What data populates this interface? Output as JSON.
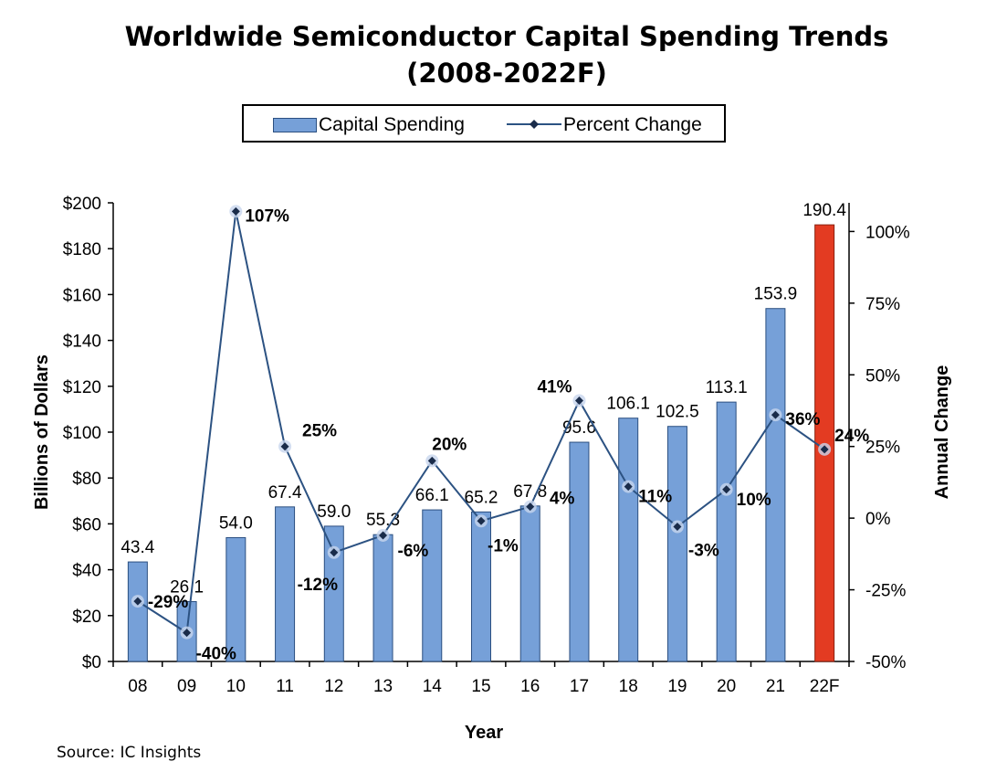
{
  "chart_data": {
    "type": "bar",
    "title": "Worldwide Semiconductor Capital Spending Trends",
    "subtitle": "(2008-2022F)",
    "categories": [
      "08",
      "09",
      "10",
      "11",
      "12",
      "13",
      "14",
      "15",
      "16",
      "17",
      "18",
      "19",
      "20",
      "21",
      "22F"
    ],
    "series": [
      {
        "name": "Capital Spending",
        "type": "bar",
        "axis": "left",
        "values": [
          43.4,
          26.1,
          54.0,
          67.4,
          59.0,
          55.3,
          66.1,
          65.2,
          67.8,
          95.6,
          106.1,
          102.5,
          113.1,
          153.9,
          190.4
        ],
        "labels": [
          "43.4",
          "26.1",
          "54.0",
          "67.4",
          "59.0",
          "55.3",
          "66.1",
          "65.2",
          "67.8",
          "95.6",
          "106.1",
          "102.5",
          "113.1",
          "153.9",
          "190.4"
        ],
        "color": "#76a0d8",
        "highlight_index": 14,
        "highlight_color": "#e33b22"
      },
      {
        "name": "Percent Change",
        "type": "line",
        "axis": "right",
        "values": [
          -29,
          -40,
          107,
          25,
          -12,
          -6,
          20,
          -1,
          4,
          41,
          11,
          -3,
          10,
          36,
          24
        ],
        "labels": [
          "-29%",
          "-40%",
          "107%",
          "25%",
          "-12%",
          "-6%",
          "20%",
          "-1%",
          "4%",
          "41%",
          "11%",
          "-3%",
          "10%",
          "36%",
          "24%"
        ],
        "color": "#2c5282"
      }
    ],
    "xlabel": "Year",
    "ylabel": "Billions of Dollars",
    "y2label": "Annual Change",
    "ylim": [
      0,
      200
    ],
    "yticks": [
      "$0",
      "$20",
      "$40",
      "$60",
      "$80",
      "$100",
      "$120",
      "$140",
      "$160",
      "$180",
      "$200"
    ],
    "y2lim": [
      -50,
      110
    ],
    "y2ticks": [
      "-50%",
      "-25%",
      "0%",
      "25%",
      "50%",
      "75%",
      "100%"
    ],
    "legend": [
      "Capital Spending",
      "Percent Change"
    ],
    "legend_position": "top-center",
    "source": "Source: IC Insights"
  }
}
